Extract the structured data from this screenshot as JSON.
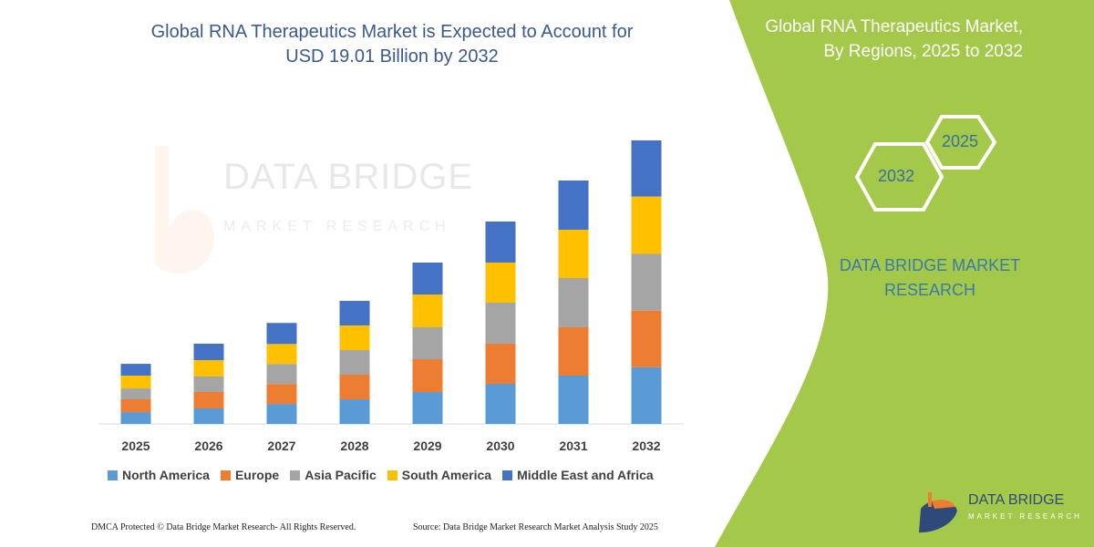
{
  "chart_data": {
    "type": "bar",
    "stacked": true,
    "title": "Global RNA Therapeutics Market is Expected to Account for USD 19.01 Billion by 2032",
    "categories": [
      "2025",
      "2026",
      "2027",
      "2028",
      "2029",
      "2030",
      "2031",
      "2032"
    ],
    "series": [
      {
        "name": "North America",
        "color": "#5b9bd5",
        "values": [
          0.79,
          1.04,
          1.34,
          1.65,
          2.14,
          2.69,
          3.24,
          3.8
        ]
      },
      {
        "name": "Europe",
        "color": "#ed7d31",
        "values": [
          0.86,
          1.1,
          1.34,
          1.65,
          2.2,
          2.69,
          3.24,
          3.8
        ]
      },
      {
        "name": "Asia Pacific",
        "color": "#a5a5a5",
        "values": [
          0.73,
          1.04,
          1.34,
          1.65,
          2.14,
          2.75,
          3.3,
          3.8
        ]
      },
      {
        "name": "South America",
        "color": "#ffc000",
        "values": [
          0.86,
          1.1,
          1.34,
          1.65,
          2.2,
          2.69,
          3.24,
          3.85
        ]
      },
      {
        "name": "Middle East and Africa",
        "color": "#4472c4",
        "values": [
          0.79,
          1.1,
          1.41,
          1.65,
          2.14,
          2.75,
          3.3,
          3.76
        ]
      }
    ],
    "unit": "USD Billion",
    "ylim": [
      0,
      19.01
    ],
    "y_axis_shown": false,
    "grid": false,
    "legend_position": "bottom"
  },
  "title_line1": "Global RNA Therapeutics Market is Expected to Account for",
  "title_line2": "USD 19.01 Billion by 2032",
  "side_panel": {
    "title_line1": "Global RNA Therapeutics Market,",
    "title_line2": "By Regions, 2025 to 2032",
    "hex_1": "2025",
    "hex_2": "2032",
    "brand_line1": "DATA BRIDGE MARKET",
    "brand_line2": "RESEARCH",
    "color": "#a4c94a"
  },
  "watermark": {
    "line1": "DATA BRIDGE",
    "line2": "MARKET RESEARCH"
  },
  "logo": {
    "line1": "DATA BRIDGE",
    "line2": "MARKET RESEARCH"
  },
  "footer": {
    "copyright": "DMCA Protected © Data Bridge Market Research- All Rights Reserved.",
    "source": "Source: Data Bridge Market Research Market Analysis Study 2025"
  }
}
